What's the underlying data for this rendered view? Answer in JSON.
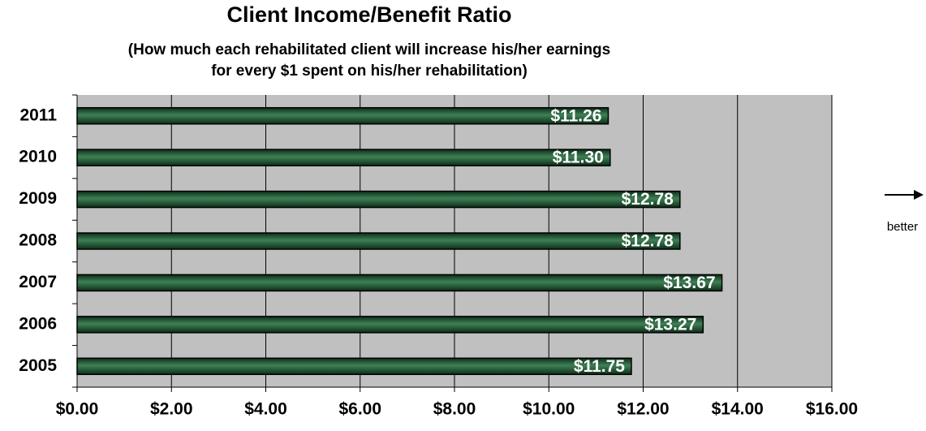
{
  "chart_data": {
    "type": "bar",
    "orientation": "horizontal",
    "title": "Client Income/Benefit Ratio",
    "subtitle": [
      "(How much each rehabilitated client will increase his/her earnings",
      "for every $1 spent on his/her rehabilitation)"
    ],
    "categories": [
      "2011",
      "2010",
      "2009",
      "2008",
      "2007",
      "2006",
      "2005"
    ],
    "values": [
      11.26,
      11.3,
      12.78,
      12.78,
      13.67,
      13.27,
      11.75
    ],
    "value_labels": [
      "$11.26",
      "$11.30",
      "$12.78",
      "$12.78",
      "$13.67",
      "$13.27",
      "$11.75"
    ],
    "color": "#1e5a34",
    "xlim": [
      0,
      16
    ],
    "xticks": [
      {
        "value": 0,
        "label": "$0.00"
      },
      {
        "value": 2,
        "label": "$2.00"
      },
      {
        "value": 4,
        "label": "$4.00"
      },
      {
        "value": 6,
        "label": "$6.00"
      },
      {
        "value": 8,
        "label": "$8.00"
      },
      {
        "value": 10,
        "label": "$10.00"
      },
      {
        "value": 12,
        "label": "$12.00"
      },
      {
        "value": 14,
        "label": "$14.00"
      },
      {
        "value": 16,
        "label": "$16.00"
      }
    ],
    "grid": true,
    "annotation": "better"
  }
}
